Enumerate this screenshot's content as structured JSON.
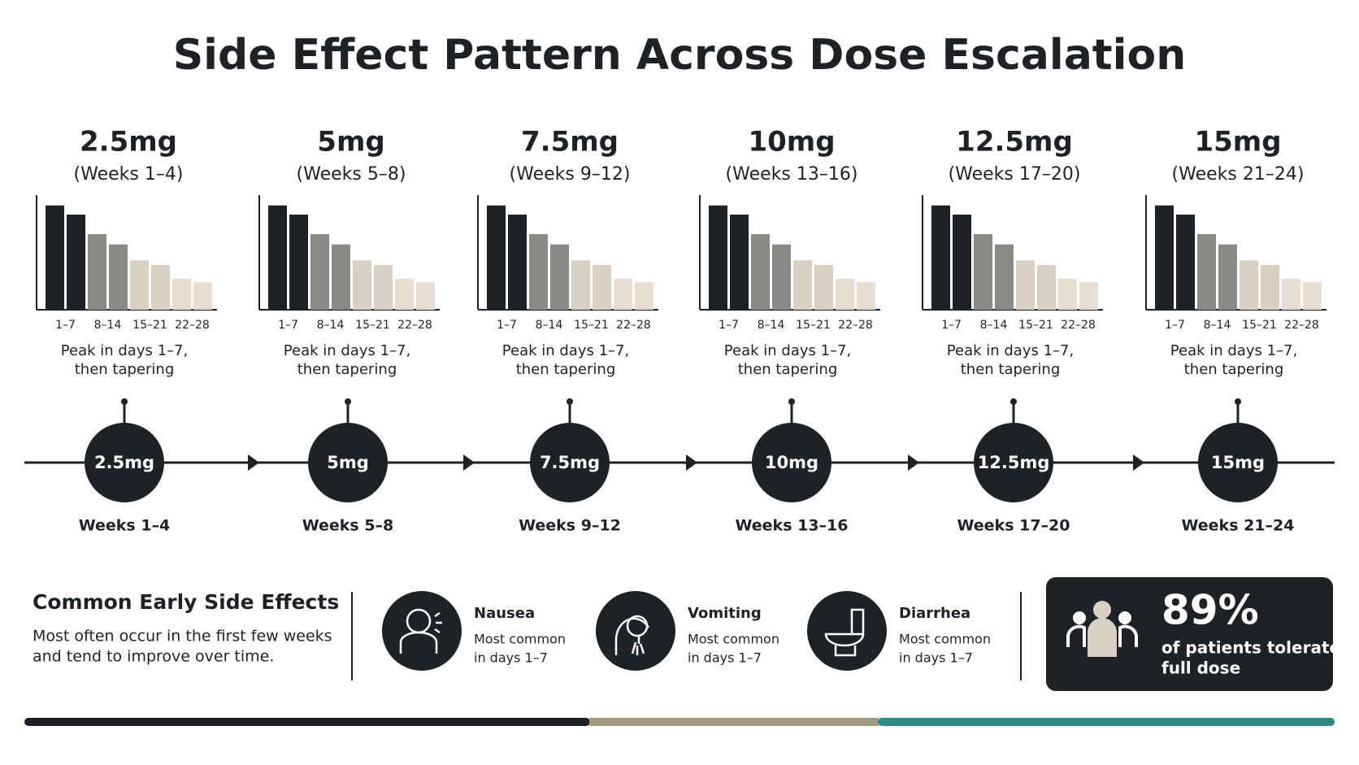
{
  "title": "Side Effect Pattern Across Dose Escalation",
  "doses": [
    {
      "dose": "2.5mg",
      "period": "(Weeks 1–4)",
      "timeline_weeks": "Weeks 1–4",
      "caption": [
        "Peak in days 1–7,",
        "then tapering"
      ],
      "chart": {
        "type": "bar",
        "categories": [
          "1–7",
          null,
          "8–14",
          null,
          "15–21",
          null,
          "22–28",
          null
        ],
        "values": [
          91,
          83,
          66,
          57,
          43,
          39,
          27,
          24
        ],
        "colors": [
          "#1e2226",
          "#1e2226",
          "#8a8985",
          "#8a8985",
          "#d9cfc2",
          "#d9cfc2",
          "#e6ded3",
          "#e6ded3"
        ],
        "ylim": [
          0,
          100
        ]
      }
    },
    {
      "dose": "5mg",
      "period": "(Weeks 5–8)",
      "timeline_weeks": "Weeks 5–8",
      "caption": [
        "Peak in days 1–7,",
        "then tapering"
      ],
      "chart": {
        "type": "bar",
        "categories": [
          "1–7",
          null,
          "8–14",
          null,
          "15–21",
          null,
          "22–28",
          null
        ],
        "values": [
          91,
          83,
          66,
          57,
          43,
          39,
          27,
          24
        ],
        "colors": [
          "#1e2226",
          "#1e2226",
          "#8a8985",
          "#8a8985",
          "#d9cfc2",
          "#d9cfc2",
          "#e6ded3",
          "#e6ded3"
        ],
        "ylim": [
          0,
          100
        ]
      }
    },
    {
      "dose": "7.5mg",
      "period": "(Weeks 9–12)",
      "timeline_weeks": "Weeks 9–12",
      "caption": [
        "Peak in days 1–7,",
        "then tapering"
      ],
      "chart": {
        "type": "bar",
        "categories": [
          "1–7",
          null,
          "8–14",
          null,
          "15–21",
          null,
          "22–28",
          null
        ],
        "values": [
          91,
          83,
          66,
          57,
          43,
          39,
          27,
          24
        ],
        "colors": [
          "#1e2226",
          "#1e2226",
          "#8a8985",
          "#8a8985",
          "#d9cfc2",
          "#d9cfc2",
          "#e6ded3",
          "#e6ded3"
        ],
        "ylim": [
          0,
          100
        ]
      }
    },
    {
      "dose": "10mg",
      "period": "(Weeks 13–16)",
      "timeline_weeks": "Weeks 13–16",
      "caption": [
        "Peak in days 1–7,",
        "then tapering"
      ],
      "chart": {
        "type": "bar",
        "categories": [
          "1–7",
          null,
          "8–14",
          null,
          "15–21",
          null,
          "22–28",
          null
        ],
        "values": [
          91,
          83,
          66,
          57,
          43,
          39,
          27,
          24
        ],
        "colors": [
          "#1e2226",
          "#1e2226",
          "#8a8985",
          "#8a8985",
          "#d9cfc2",
          "#d9cfc2",
          "#e6ded3",
          "#e6ded3"
        ],
        "ylim": [
          0,
          100
        ]
      }
    },
    {
      "dose": "12.5mg",
      "period": "(Weeks 17–20)",
      "timeline_weeks": "Weeks 17–20",
      "caption": [
        "Peak in days 1–7,",
        "then tapering"
      ],
      "chart": {
        "type": "bar",
        "categories": [
          "1–7",
          null,
          "8–14",
          null,
          "15–21",
          null,
          "22–28",
          null
        ],
        "values": [
          91,
          83,
          66,
          57,
          43,
          39,
          27,
          24
        ],
        "colors": [
          "#1e2226",
          "#1e2226",
          "#8a8985",
          "#8a8985",
          "#d9cfc2",
          "#d9cfc2",
          "#e6ded3",
          "#e6ded3"
        ],
        "ylim": [
          0,
          100
        ]
      }
    },
    {
      "dose": "15mg",
      "period": "(Weeks 21–24)",
      "timeline_weeks": "Weeks 21–24",
      "caption": [
        "Peak in days 1–7,",
        "then tapering"
      ],
      "chart": {
        "type": "bar",
        "categories": [
          "1–7",
          null,
          "8–14",
          null,
          "15–21",
          null,
          "22–28",
          null
        ],
        "values": [
          91,
          83,
          66,
          57,
          43,
          39,
          27,
          24
        ],
        "colors": [
          "#1e2226",
          "#1e2226",
          "#8a8985",
          "#8a8985",
          "#d9cfc2",
          "#d9cfc2",
          "#e6ded3",
          "#e6ded3"
        ],
        "ylim": [
          0,
          100
        ]
      }
    }
  ],
  "summary": {
    "heading": "Common Early Side Effects",
    "text": [
      "Most often occur in the first few weeks",
      "and tend to improve over time."
    ]
  },
  "effects": [
    {
      "name": "Nausea",
      "detail": [
        "Most common",
        "in days 1–7"
      ]
    },
    {
      "name": "Vomiting",
      "detail": [
        "Most common",
        "in days 1–7"
      ]
    },
    {
      "name": "Diarrhea",
      "detail": [
        "Most common",
        "in days 1–7"
      ]
    }
  ],
  "stat": {
    "value": "89%",
    "text": [
      "of patients tolerate",
      "full dose"
    ]
  }
}
